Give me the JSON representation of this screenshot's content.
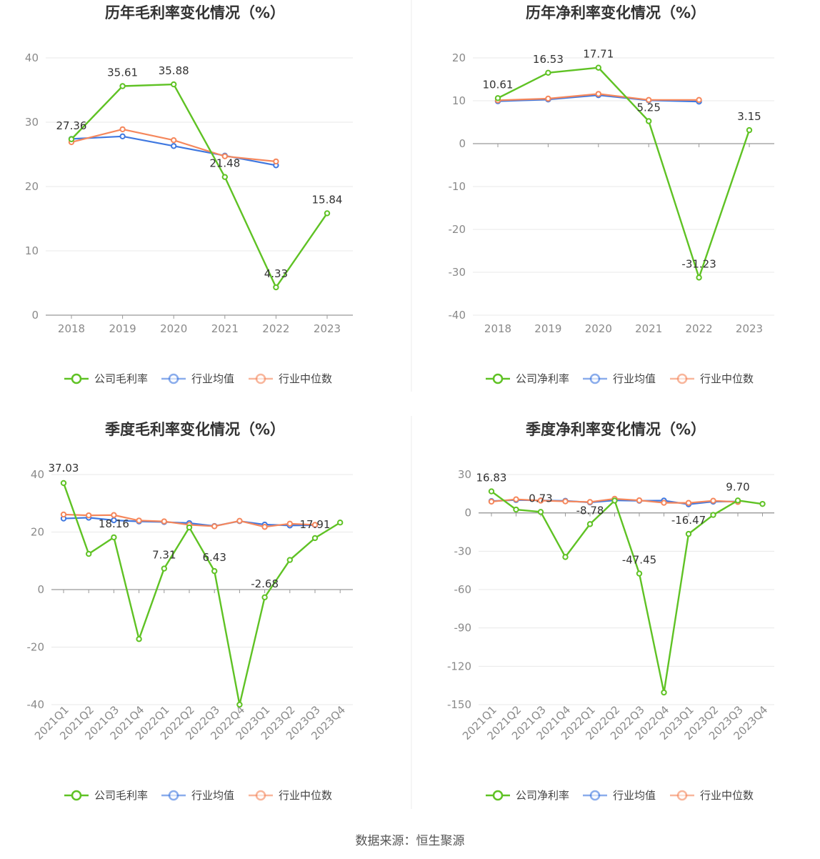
{
  "source": "数据来源：恒生聚源",
  "colors": {
    "company": "#5fc224",
    "avg": "#3f78e0",
    "median": "#f5875c",
    "grid": "#e8e8e8",
    "axis": "#999999"
  },
  "chart_data": [
    {
      "type": "line",
      "title": "历年毛利率变化情况（%）",
      "categories": [
        "2018",
        "2019",
        "2020",
        "2021",
        "2022",
        "2023"
      ],
      "ylim": [
        0,
        40
      ],
      "yticks": [
        0,
        10,
        20,
        30,
        40
      ],
      "series": [
        {
          "name": "公司毛利率",
          "key": "company",
          "values": [
            27.36,
            35.61,
            35.88,
            21.48,
            4.33,
            15.84
          ],
          "labels": [
            "27.36",
            "35.61",
            "35.88",
            "21.48",
            "4.33",
            "15.84"
          ]
        },
        {
          "name": "行业均值",
          "key": "avg",
          "values": [
            27.4,
            27.8,
            26.3,
            24.8,
            23.3,
            null
          ]
        },
        {
          "name": "行业中位数",
          "key": "median",
          "values": [
            26.9,
            28.9,
            27.2,
            24.7,
            23.9,
            null
          ]
        }
      ]
    },
    {
      "type": "line",
      "title": "历年净利率变化情况（%）",
      "categories": [
        "2018",
        "2019",
        "2020",
        "2021",
        "2022",
        "2023"
      ],
      "ylim": [
        -40,
        20
      ],
      "yticks": [
        -40,
        -30,
        -20,
        -10,
        0,
        10,
        20
      ],
      "series": [
        {
          "name": "公司净利率",
          "key": "company",
          "values": [
            10.61,
            16.53,
            17.71,
            5.25,
            -31.23,
            3.15
          ],
          "labels": [
            "10.61",
            "16.53",
            "17.71",
            "5.25",
            "-31.23",
            "3.15"
          ]
        },
        {
          "name": "行业均值",
          "key": "avg",
          "values": [
            9.9,
            10.3,
            11.3,
            10.1,
            9.8,
            null
          ]
        },
        {
          "name": "行业中位数",
          "key": "median",
          "values": [
            10.1,
            10.5,
            11.6,
            10.2,
            10.2,
            null
          ]
        }
      ]
    },
    {
      "type": "line",
      "title": "季度毛利率变化情况（%）",
      "categories": [
        "2021Q1",
        "2021Q2",
        "2021Q3",
        "2021Q4",
        "2022Q1",
        "2022Q2",
        "2022Q3",
        "2022Q4",
        "2023Q1",
        "2023Q2",
        "2023Q3",
        "2023Q4"
      ],
      "ylim": [
        -40,
        40
      ],
      "yticks": [
        -40,
        -20,
        0,
        20,
        40
      ],
      "series": [
        {
          "name": "公司毛利率",
          "key": "company",
          "values": [
            37.03,
            12.4,
            18.16,
            -17.2,
            7.31,
            21.6,
            6.43,
            -40.0,
            -2.68,
            10.3,
            17.91,
            23.3
          ],
          "labels": [
            "37.03",
            "",
            "18.16",
            "",
            "7.31",
            "",
            "6.43",
            "",
            "-2.68",
            "",
            "17.91",
            ""
          ]
        },
        {
          "name": "行业均值",
          "key": "avg",
          "values": [
            24.7,
            25.0,
            24.1,
            23.7,
            23.5,
            23.1,
            22.1,
            23.8,
            22.6,
            22.3,
            22.4,
            null
          ]
        },
        {
          "name": "行业中位数",
          "key": "median",
          "values": [
            26.1,
            25.8,
            25.9,
            24.0,
            23.7,
            22.5,
            22.0,
            23.9,
            21.8,
            22.9,
            22.5,
            null
          ]
        }
      ]
    },
    {
      "type": "line",
      "title": "季度净利率变化情况（%）",
      "categories": [
        "2021Q1",
        "2021Q2",
        "2021Q3",
        "2021Q4",
        "2022Q1",
        "2022Q2",
        "2022Q3",
        "2022Q4",
        "2023Q1",
        "2023Q2",
        "2023Q3",
        "2023Q4"
      ],
      "ylim": [
        -150,
        30
      ],
      "yticks": [
        -150,
        -120,
        -90,
        -60,
        -30,
        0,
        30
      ],
      "series": [
        {
          "name": "公司净利率",
          "key": "company",
          "values": [
            16.83,
            2.6,
            0.73,
            -34.5,
            -8.78,
            9.6,
            -47.45,
            -140.5,
            -16.47,
            -1.6,
            9.7,
            7.0
          ],
          "labels": [
            "16.83",
            "",
            "0.73",
            "",
            "-8.78",
            "",
            "-47.45",
            "",
            "-16.47",
            "",
            "9.70",
            ""
          ]
        },
        {
          "name": "行业均值",
          "key": "avg",
          "values": [
            9.2,
            10.1,
            9.7,
            9.4,
            8.2,
            9.8,
            9.5,
            9.6,
            6.7,
            8.8,
            8.9,
            null
          ]
        },
        {
          "name": "行业中位数",
          "key": "median",
          "values": [
            8.8,
            10.6,
            9.6,
            9.0,
            8.5,
            11.0,
            9.8,
            7.9,
            7.8,
            9.5,
            8.5,
            null
          ]
        }
      ]
    }
  ]
}
